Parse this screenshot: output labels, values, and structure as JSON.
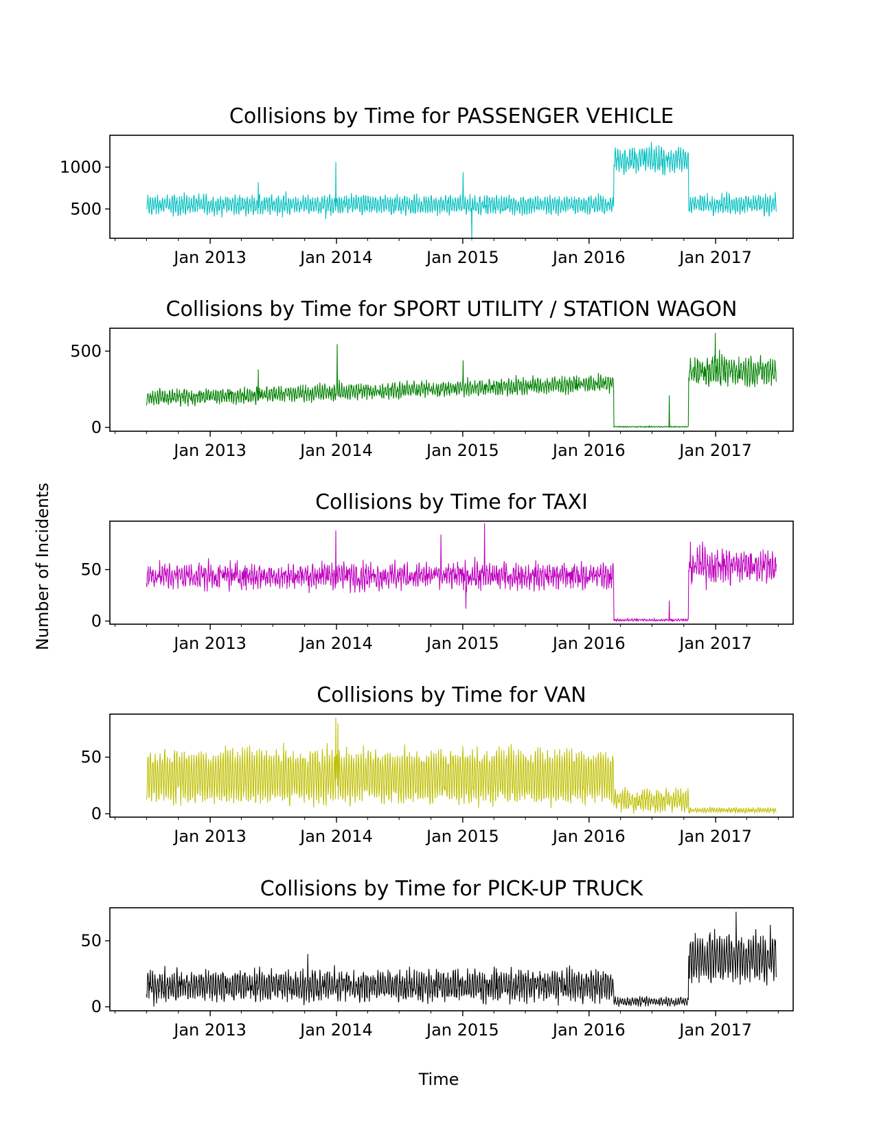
{
  "figure": {
    "ylabel": "Number of Incidents",
    "xlabel": "Time"
  },
  "chart_data": [
    {
      "type": "line",
      "title": "Collisions by Time for PASSENGER VEHICLE",
      "color": "#00bfbf",
      "x_range": [
        "2012-07-01",
        "2017-06-25"
      ],
      "ylim": [
        150,
        1380
      ],
      "yticks": [
        500,
        1000
      ],
      "xticks": [
        "Jan 2013",
        "Jan 2014",
        "Jan 2015",
        "Jan 2016",
        "Jan 2017"
      ],
      "segments": [
        {
          "start": "2012-07-01",
          "end": "2016-03-13",
          "mean": 550,
          "amplitude": 80,
          "noise": 45
        },
        {
          "start": "2016-03-13",
          "end": "2016-10-15",
          "mean": 1090,
          "amplitude": 110,
          "noise": 70
        },
        {
          "start": "2016-10-15",
          "end": "2017-06-25",
          "mean": 560,
          "amplitude": 80,
          "noise": 45
        }
      ],
      "spikes": [
        {
          "date": "2013-12-30",
          "value": 1060
        },
        {
          "date": "2013-12-01",
          "value": 380
        },
        {
          "date": "2015-01-27",
          "value": 120
        },
        {
          "date": "2015-01-02",
          "value": 940
        },
        {
          "date": "2013-05-20",
          "value": 820
        }
      ]
    },
    {
      "type": "line",
      "title": "Collisions by Time for SPORT UTILITY / STATION WAGON",
      "color": "#008000",
      "x_range": [
        "2012-07-01",
        "2017-06-25"
      ],
      "ylim": [
        -25,
        650
      ],
      "yticks": [
        0,
        500
      ],
      "xticks": [
        "Jan 2013",
        "Jan 2014",
        "Jan 2015",
        "Jan 2016",
        "Jan 2017"
      ],
      "segments": [
        {
          "start": "2012-07-01",
          "end": "2016-03-13",
          "mean_start": 190,
          "mean_end": 290,
          "amplitude": 35,
          "noise": 25
        },
        {
          "start": "2016-03-13",
          "end": "2016-10-15",
          "mean": 4,
          "amplitude": 2,
          "noise": 2
        },
        {
          "start": "2016-10-15",
          "end": "2017-06-25",
          "mean": 370,
          "amplitude": 55,
          "noise": 45
        }
      ],
      "spikes": [
        {
          "date": "2014-01-03",
          "value": 545
        },
        {
          "date": "2013-05-20",
          "value": 380
        },
        {
          "date": "2015-01-02",
          "value": 440
        },
        {
          "date": "2016-12-31",
          "value": 620
        },
        {
          "date": "2016-08-20",
          "value": 210
        }
      ]
    },
    {
      "type": "line",
      "title": "Collisions by Time for TAXI",
      "color": "#bf00bf",
      "x_range": [
        "2012-07-01",
        "2017-06-25"
      ],
      "ylim": [
        -3,
        97
      ],
      "yticks": [
        0,
        50
      ],
      "xticks": [
        "Jan 2013",
        "Jan 2014",
        "Jan 2015",
        "Jan 2016",
        "Jan 2017"
      ],
      "segments": [
        {
          "start": "2012-07-01",
          "end": "2016-03-13",
          "mean": 44,
          "amplitude": 6,
          "noise": 7
        },
        {
          "start": "2016-03-13",
          "end": "2016-10-15",
          "mean": 1,
          "amplitude": 0.5,
          "noise": 0.8
        },
        {
          "start": "2016-10-15",
          "end": "2017-06-25",
          "mean": 54,
          "amplitude": 8,
          "noise": 9
        }
      ],
      "spikes": [
        {
          "date": "2013-12-30",
          "value": 88
        },
        {
          "date": "2014-10-30",
          "value": 84
        },
        {
          "date": "2015-03-05",
          "value": 95
        },
        {
          "date": "2015-01-10",
          "value": 12
        },
        {
          "date": "2016-08-20",
          "value": 20
        }
      ]
    },
    {
      "type": "line",
      "title": "Collisions by Time for VAN",
      "color": "#bfbf00",
      "x_range": [
        "2012-07-01",
        "2017-06-25"
      ],
      "ylim": [
        -3,
        88
      ],
      "yticks": [
        0,
        50
      ],
      "xticks": [
        "Jan 2013",
        "Jan 2014",
        "Jan 2015",
        "Jan 2016",
        "Jan 2017"
      ],
      "segments": [
        {
          "start": "2012-07-01",
          "end": "2016-03-13",
          "mean": 33,
          "amplitude": 20,
          "noise": 6
        },
        {
          "start": "2016-03-13",
          "end": "2016-10-15",
          "mean": 12,
          "amplitude": 7,
          "noise": 4
        },
        {
          "start": "2016-10-15",
          "end": "2017-06-25",
          "mean": 3,
          "amplitude": 1.5,
          "noise": 1
        }
      ],
      "spikes": [
        {
          "date": "2013-12-30",
          "value": 85
        },
        {
          "date": "2014-01-05",
          "value": 80
        }
      ]
    },
    {
      "type": "line",
      "title": "Collisions by Time for PICK-UP TRUCK",
      "color": "#000000",
      "x_range": [
        "2012-07-01",
        "2017-06-25"
      ],
      "ylim": [
        -3,
        75
      ],
      "yticks": [
        0,
        50
      ],
      "xticks": [
        "Jan 2013",
        "Jan 2014",
        "Jan 2015",
        "Jan 2016",
        "Jan 2017"
      ],
      "segments": [
        {
          "start": "2012-07-01",
          "end": "2016-03-13",
          "mean": 16,
          "amplitude": 8,
          "noise": 5
        },
        {
          "start": "2016-03-13",
          "end": "2016-10-15",
          "mean": 4,
          "amplitude": 2,
          "noise": 1.5
        },
        {
          "start": "2016-10-15",
          "end": "2017-06-25",
          "mean": 37,
          "amplitude": 13,
          "noise": 7
        }
      ],
      "spikes": [
        {
          "date": "2013-10-10",
          "value": 40
        },
        {
          "date": "2017-03-01",
          "value": 72
        }
      ]
    }
  ]
}
